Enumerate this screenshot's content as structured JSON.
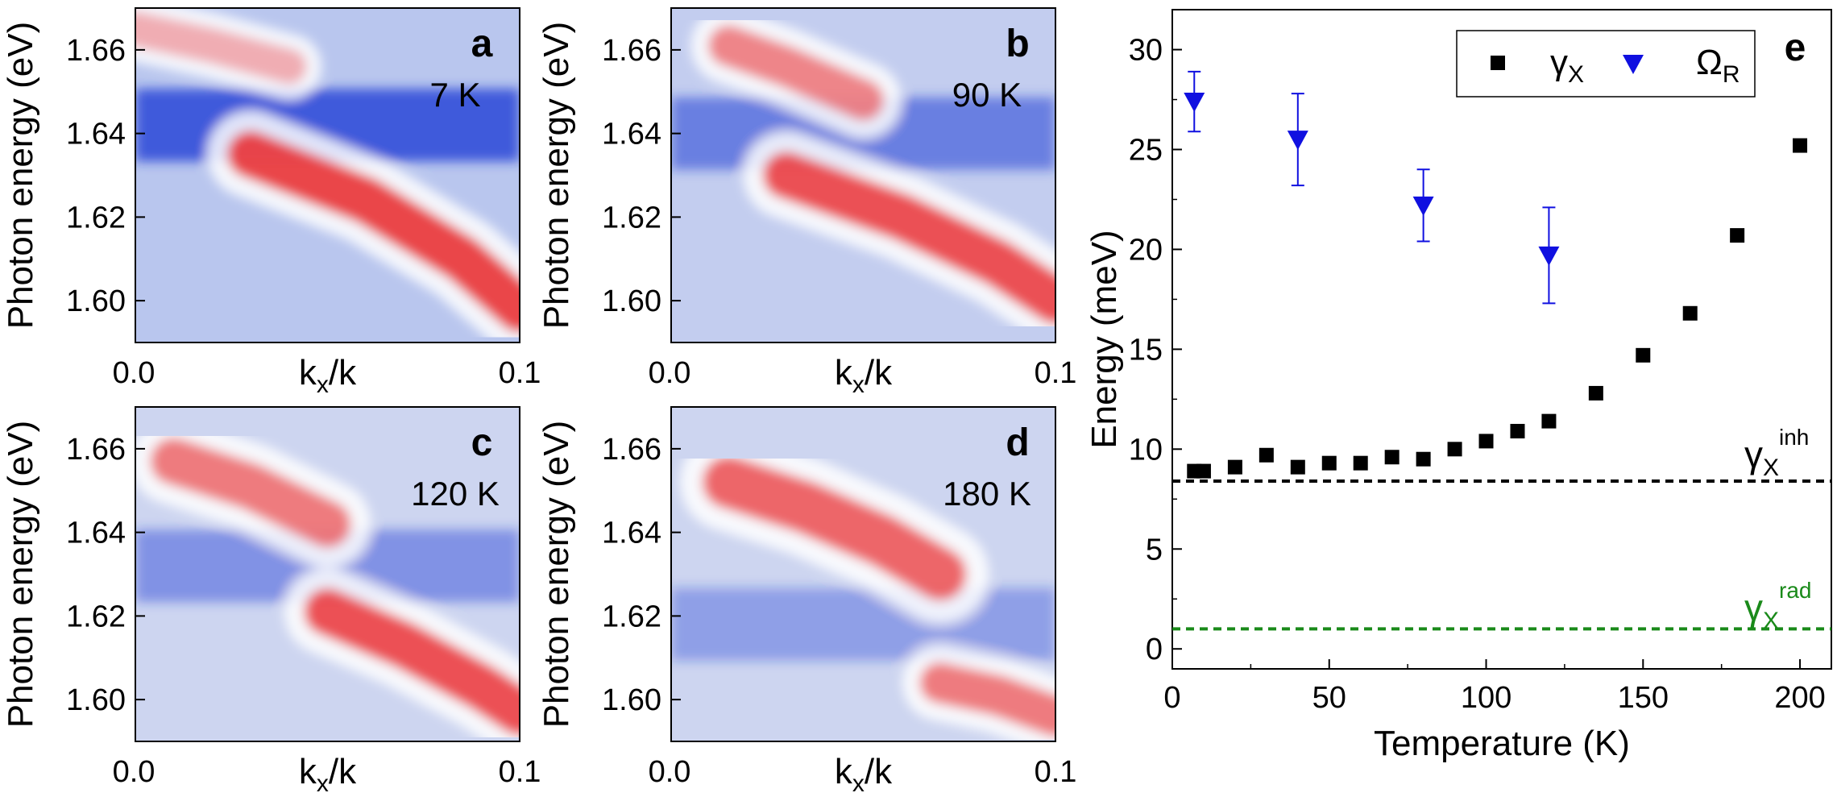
{
  "chart_data": [
    {
      "type": "heatmap",
      "panel_label": "a",
      "temperature_label": "7 K",
      "xlabel": {
        "main": "k",
        "sub": "x",
        "tail": "/k"
      },
      "ylabel": "Photon energy (eV)",
      "xlim": [
        0.0,
        0.1
      ],
      "ylim": [
        1.59,
        1.67
      ],
      "xticks": [
        "0.0",
        "0.1"
      ],
      "yticks": [
        1.6,
        1.62,
        1.64,
        1.66
      ],
      "ytick_labels": [
        "1.60",
        "1.62",
        "1.64",
        "1.66"
      ],
      "colormap": [
        "#1f3fd6",
        "#ffffff",
        "#e8262a"
      ],
      "branches": [
        {
          "kx": [
            0.0,
            0.02,
            0.04
          ],
          "energy": [
            1.665,
            1.661,
            1.656
          ],
          "intensity": 0.35,
          "width_eV": 0.006
        },
        {
          "kx": [
            0.03,
            0.06,
            0.085,
            0.1
          ],
          "energy": [
            1.635,
            1.624,
            1.61,
            1.598
          ],
          "intensity": 0.85,
          "width_eV": 0.008
        }
      ],
      "dark_band": {
        "energy": 1.642,
        "strength": 0.8
      }
    },
    {
      "type": "heatmap",
      "panel_label": "b",
      "temperature_label": "90 K",
      "xlabel": {
        "main": "k",
        "sub": "x",
        "tail": "/k"
      },
      "ylabel": "Photon energy (eV)",
      "xlim": [
        0.0,
        0.1
      ],
      "ylim": [
        1.59,
        1.67
      ],
      "xticks": [
        "0.0",
        "0.1"
      ],
      "yticks": [
        1.6,
        1.62,
        1.64,
        1.66
      ],
      "ytick_labels": [
        "1.60",
        "1.62",
        "1.64",
        "1.66"
      ],
      "colormap": [
        "#1f3fd6",
        "#ffffff",
        "#e8262a"
      ],
      "branches": [
        {
          "kx": [
            0.015,
            0.03,
            0.05
          ],
          "energy": [
            1.661,
            1.656,
            1.648
          ],
          "intensity": 0.55,
          "width_eV": 0.007
        },
        {
          "kx": [
            0.03,
            0.06,
            0.085,
            0.1
          ],
          "energy": [
            1.63,
            1.62,
            1.609,
            1.6
          ],
          "intensity": 0.8,
          "width_eV": 0.008
        }
      ],
      "dark_band": {
        "energy": 1.64,
        "strength": 0.55
      }
    },
    {
      "type": "heatmap",
      "panel_label": "c",
      "temperature_label": "120 K",
      "xlabel": {
        "main": "k",
        "sub": "x",
        "tail": "/k"
      },
      "ylabel": "Photon energy (eV)",
      "xlim": [
        0.0,
        0.1
      ],
      "ylim": [
        1.59,
        1.67
      ],
      "xticks": [
        "0.0",
        "0.1"
      ],
      "yticks": [
        1.6,
        1.62,
        1.64,
        1.66
      ],
      "ytick_labels": [
        "1.60",
        "1.62",
        "1.64",
        "1.66"
      ],
      "colormap": [
        "#1f3fd6",
        "#ffffff",
        "#e8262a"
      ],
      "branches": [
        {
          "kx": [
            0.01,
            0.03,
            0.05
          ],
          "energy": [
            1.657,
            1.651,
            1.642
          ],
          "intensity": 0.6,
          "width_eV": 0.008
        },
        {
          "kx": [
            0.05,
            0.07,
            0.09,
            0.1
          ],
          "energy": [
            1.621,
            1.613,
            1.603,
            1.597
          ],
          "intensity": 0.8,
          "width_eV": 0.008
        }
      ],
      "dark_band": {
        "energy": 1.632,
        "strength": 0.45
      }
    },
    {
      "type": "heatmap",
      "panel_label": "d",
      "temperature_label": "180 K",
      "xlabel": {
        "main": "k",
        "sub": "x",
        "tail": "/k"
      },
      "ylabel": "Photon energy (eV)",
      "xlim": [
        0.0,
        0.1
      ],
      "ylim": [
        1.59,
        1.67
      ],
      "xticks": [
        "0.0",
        "0.1"
      ],
      "yticks": [
        1.6,
        1.62,
        1.64,
        1.66
      ],
      "ytick_labels": [
        "1.60",
        "1.62",
        "1.64",
        "1.66"
      ],
      "colormap": [
        "#1f3fd6",
        "#ffffff",
        "#e8262a"
      ],
      "branches": [
        {
          "kx": [
            0.015,
            0.035,
            0.055,
            0.07
          ],
          "energy": [
            1.652,
            1.646,
            1.638,
            1.63
          ],
          "intensity": 0.7,
          "width_eV": 0.009
        },
        {
          "kx": [
            0.07,
            0.085,
            0.1
          ],
          "energy": [
            1.604,
            1.601,
            1.596
          ],
          "intensity": 0.6,
          "width_eV": 0.007
        }
      ],
      "dark_band": {
        "energy": 1.618,
        "strength": 0.35
      }
    },
    {
      "type": "scatter",
      "panel_label": "e",
      "xlabel": "Temperature (K)",
      "ylabel": "Energy (meV)",
      "xlim": [
        0,
        210
      ],
      "ylim": [
        -1,
        32
      ],
      "xticks": [
        0,
        50,
        100,
        150,
        200
      ],
      "yticks": [
        0,
        5,
        10,
        15,
        20,
        25,
        30
      ],
      "series": [
        {
          "name": "γX",
          "label_main": "γ",
          "label_sub": "X",
          "marker": "square",
          "color": "#000000",
          "x": [
            7,
            10,
            20,
            30,
            40,
            50,
            60,
            70,
            80,
            90,
            100,
            110,
            120,
            135,
            150,
            165,
            180,
            200
          ],
          "y": [
            8.9,
            8.9,
            9.1,
            9.7,
            9.1,
            9.3,
            9.3,
            9.6,
            9.5,
            10.0,
            10.4,
            10.9,
            11.4,
            12.8,
            14.7,
            16.8,
            20.7,
            25.2
          ]
        },
        {
          "name": "ΩR",
          "label_main": "Ω",
          "label_sub": "R",
          "marker": "triangle-down",
          "color": "#1010e0",
          "x": [
            7,
            40,
            80,
            120
          ],
          "y": [
            27.4,
            25.5,
            22.2,
            19.7
          ],
          "yerr": [
            1.5,
            2.3,
            1.8,
            2.4
          ]
        }
      ],
      "reference_lines": [
        {
          "name": "γX inh",
          "y": 8.4,
          "color": "#000000",
          "label_main": "γ",
          "label_sub": "X",
          "label_sup": "inh"
        },
        {
          "name": "γX rad",
          "y": 1.0,
          "color": "#1a8a1a",
          "label_main": "γ",
          "label_sub": "X",
          "label_sup": "rad"
        }
      ]
    }
  ]
}
